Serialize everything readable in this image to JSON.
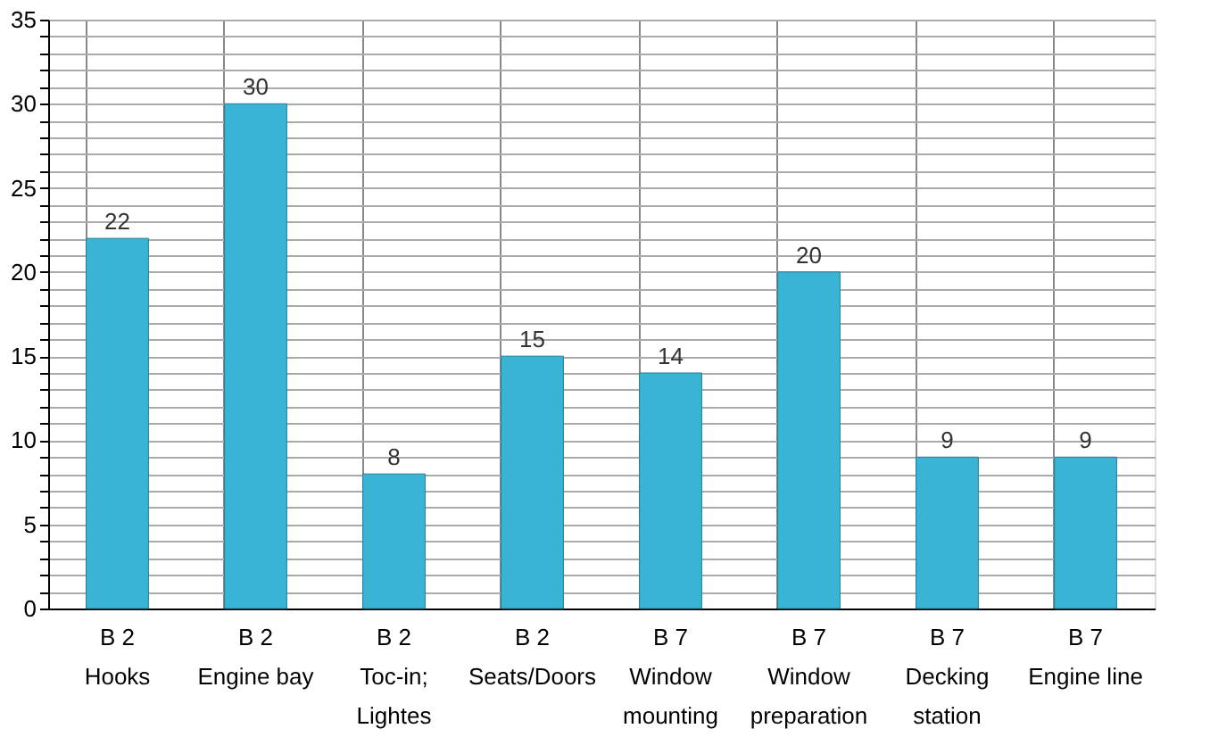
{
  "chart_data": {
    "type": "bar",
    "categories": [
      "B 2\nHooks",
      "B 2\nEngine bay",
      "B 2\nToc-in;\nLightes",
      "B 2\nSeats/Doors",
      "B 7\nWindow\nmounting",
      "B 7\nWindow\npreparation",
      "B 7\nDecking\nstation",
      "B 7\nEngine line"
    ],
    "values": [
      22,
      30,
      8,
      15,
      14,
      20,
      9,
      9
    ],
    "color": "#3ab4d4",
    "ylim": [
      0,
      35
    ],
    "yticks": [
      0,
      {
        "value": 1,
        "label": null
      },
      {
        "value": 2,
        "label": null
      },
      {
        "value": 3,
        "label": null
      },
      {
        "value": 4,
        "label": null
      },
      5,
      {
        "value": 6,
        "label": null
      },
      {
        "value": 7,
        "label": null
      },
      {
        "value": 8,
        "label": null
      },
      {
        "value": 9,
        "label": null
      },
      10,
      {
        "value": 11,
        "label": null
      },
      {
        "value": 12,
        "label": null
      },
      {
        "value": 13,
        "label": null
      },
      {
        "value": 14,
        "label": null
      },
      15,
      {
        "value": 16,
        "label": null
      },
      {
        "value": 17,
        "label": null
      },
      {
        "value": 18,
        "label": null
      },
      {
        "value": 19,
        "label": null
      },
      20,
      {
        "value": 21,
        "label": null
      },
      {
        "value": 22,
        "label": null
      },
      {
        "value": 23,
        "label": null
      },
      {
        "value": 24,
        "label": null
      },
      25,
      {
        "value": 26,
        "label": null
      },
      {
        "value": 27,
        "label": null
      },
      {
        "value": 28,
        "label": null
      },
      {
        "value": 29,
        "label": null
      },
      30,
      {
        "value": 31,
        "label": null
      },
      {
        "value": 32,
        "label": null
      },
      {
        "value": 33,
        "label": null
      },
      {
        "value": 34,
        "label": null
      },
      35
    ],
    "grid": true,
    "data_labels": true
  }
}
